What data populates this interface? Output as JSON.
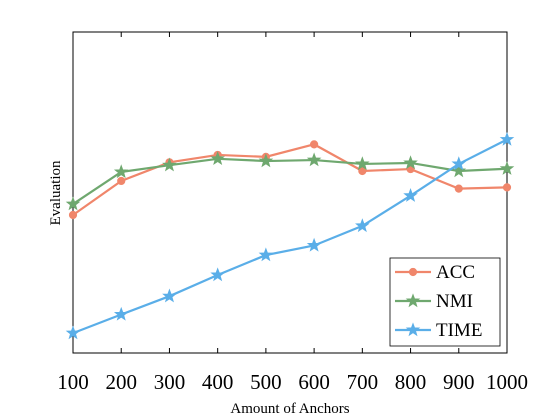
{
  "chart_data": {
    "type": "line",
    "title": "",
    "xlabel": "Amount of Anchors",
    "ylabel": "Evaluation",
    "x": [
      100,
      200,
      300,
      400,
      500,
      600,
      700,
      800,
      900,
      1000
    ],
    "x_tick_labels": [
      "100",
      "200",
      "300",
      "400",
      "500",
      "600",
      "700",
      "800",
      "900",
      "1000"
    ],
    "xlim": [
      100,
      1000
    ],
    "ylim": [
      0,
      1
    ],
    "y_ticks_shown": false,
    "grid": false,
    "legend_position": "bottom-right",
    "series": [
      {
        "name": "ACC",
        "color": "#f0866b",
        "marker": "circle",
        "values": [
          0.43,
          0.536,
          0.594,
          0.617,
          0.611,
          0.65,
          0.567,
          0.573,
          0.512,
          0.516
        ]
      },
      {
        "name": "NMI",
        "color": "#6fa86f",
        "marker": "star",
        "values": [
          0.464,
          0.564,
          0.585,
          0.605,
          0.598,
          0.601,
          0.589,
          0.592,
          0.567,
          0.574
        ]
      },
      {
        "name": "TIME",
        "color": "#5aaee8",
        "marker": "star",
        "values": [
          0.062,
          0.12,
          0.177,
          0.243,
          0.305,
          0.335,
          0.396,
          0.49,
          0.589,
          0.665
        ]
      }
    ]
  }
}
